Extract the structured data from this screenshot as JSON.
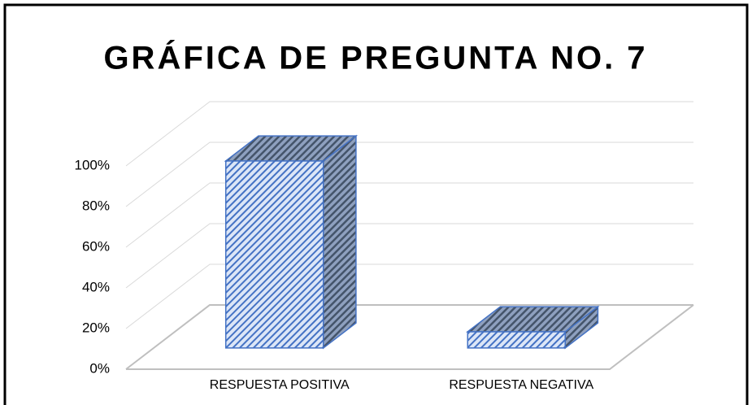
{
  "chart_data": {
    "type": "bar3d",
    "title": "GRÁFICA DE PREGUNTA NO. 7",
    "categories": [
      "RESPUESTA POSITIVA",
      "RESPUESTA NEGATIVA"
    ],
    "values": [
      92,
      8
    ],
    "color": "#4472c4",
    "ylim": [
      0,
      100
    ],
    "yticks": [
      {
        "value": 0,
        "label": "0%"
      },
      {
        "value": 20,
        "label": "20%"
      },
      {
        "value": 40,
        "label": "40%"
      },
      {
        "value": 60,
        "label": "60%"
      },
      {
        "value": 80,
        "label": "80%"
      },
      {
        "value": 100,
        "label": "100%"
      }
    ],
    "grid": true
  }
}
